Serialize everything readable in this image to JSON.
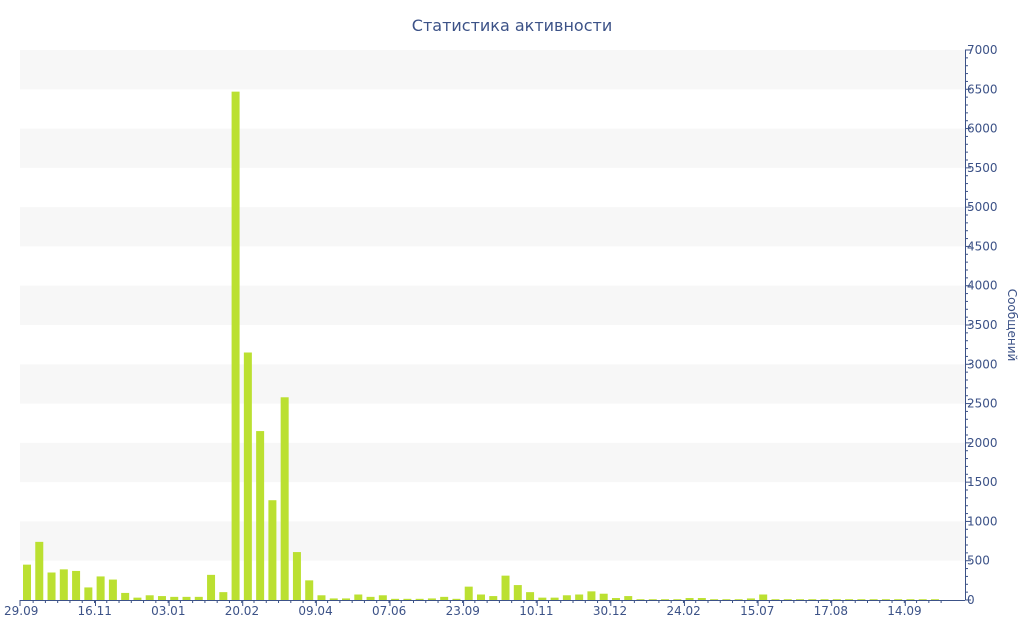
{
  "chart_data": {
    "type": "bar",
    "title": "Статистика активности",
    "ylabel": "Сообщений",
    "xlabel": "",
    "ylim": [
      0,
      7000
    ],
    "y_ticks": [
      0,
      500,
      1000,
      1500,
      2000,
      2500,
      3000,
      3500,
      4000,
      4500,
      5000,
      5500,
      6000,
      6500,
      7000
    ],
    "y_axis_side": "right",
    "x_tick_labels": [
      "29.09",
      "16.11",
      "03.01",
      "20.02",
      "09.04",
      "07.06",
      "23.09",
      "10.11",
      "30.12",
      "24.02",
      "15.07",
      "17.08",
      "14.09"
    ],
    "x_tick_bar_index": [
      0,
      6,
      12,
      18,
      24,
      30,
      36,
      42,
      48,
      54,
      60,
      66,
      72
    ],
    "bar_color": "#bbe031",
    "band_color": "#f7f7f7",
    "axis_color": "#3c5287",
    "values": [
      450,
      740,
      350,
      390,
      370,
      160,
      300,
      260,
      90,
      30,
      60,
      50,
      40,
      40,
      40,
      320,
      100,
      6470,
      3150,
      2150,
      1270,
      2580,
      610,
      250,
      60,
      20,
      20,
      70,
      40,
      60,
      15,
      15,
      15,
      20,
      40,
      15,
      170,
      70,
      50,
      310,
      190,
      100,
      30,
      30,
      60,
      70,
      110,
      80,
      25,
      50,
      10,
      10,
      10,
      10,
      25,
      25,
      10,
      10,
      10,
      20,
      70,
      10,
      10,
      10,
      10,
      10,
      10,
      10,
      10,
      10,
      10,
      10,
      10,
      10,
      10
    ]
  }
}
